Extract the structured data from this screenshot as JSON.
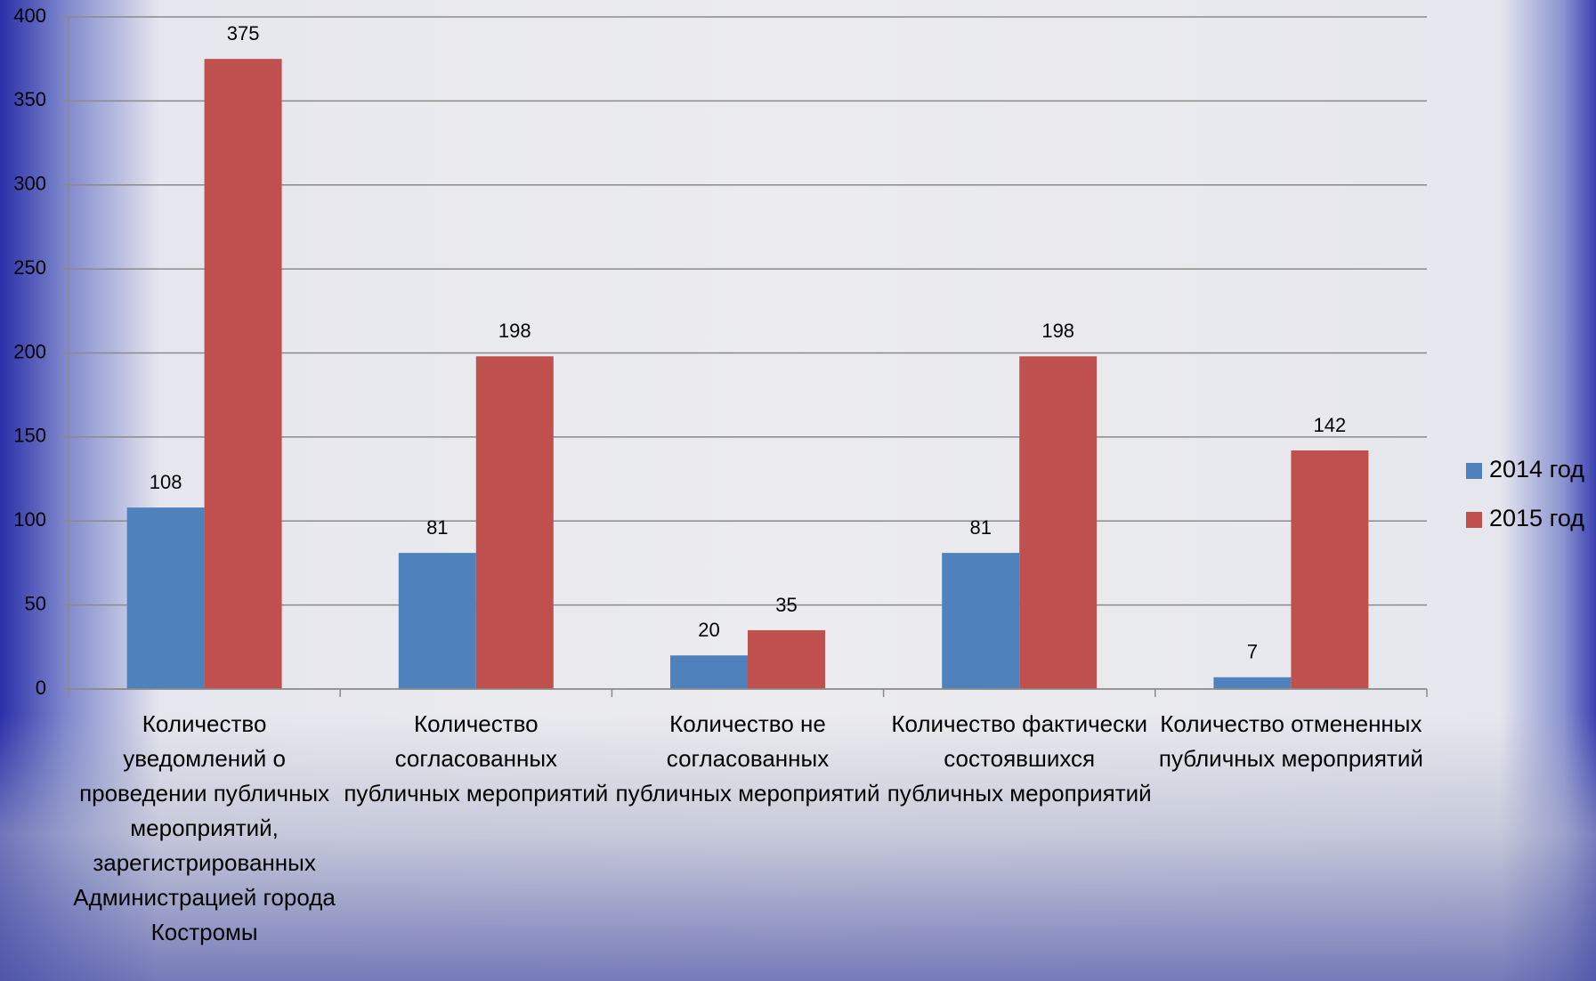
{
  "chart_data": {
    "type": "bar",
    "categories": [
      "Количество уведомлений о проведении публичных мероприятий, зарегистрированных Администрацией города Костромы",
      "Количество согласованных публичных мероприятий",
      "Количество не согласованных публичных мероприятий",
      "Количество фактически состоявшихся публичных мероприятий",
      "Количество отмененных публичных мероприятий"
    ],
    "series": [
      {
        "name": "2014 год",
        "color": "#4f81bd",
        "values": [
          108,
          81,
          20,
          81,
          7
        ]
      },
      {
        "name": "2015 год",
        "color": "#c0504d",
        "values": [
          375,
          198,
          35,
          198,
          142
        ]
      }
    ],
    "ylim": [
      0,
      400
    ],
    "yticks": [
      0,
      50,
      100,
      150,
      200,
      250,
      300,
      350,
      400
    ],
    "grid": true,
    "legend": "right"
  }
}
